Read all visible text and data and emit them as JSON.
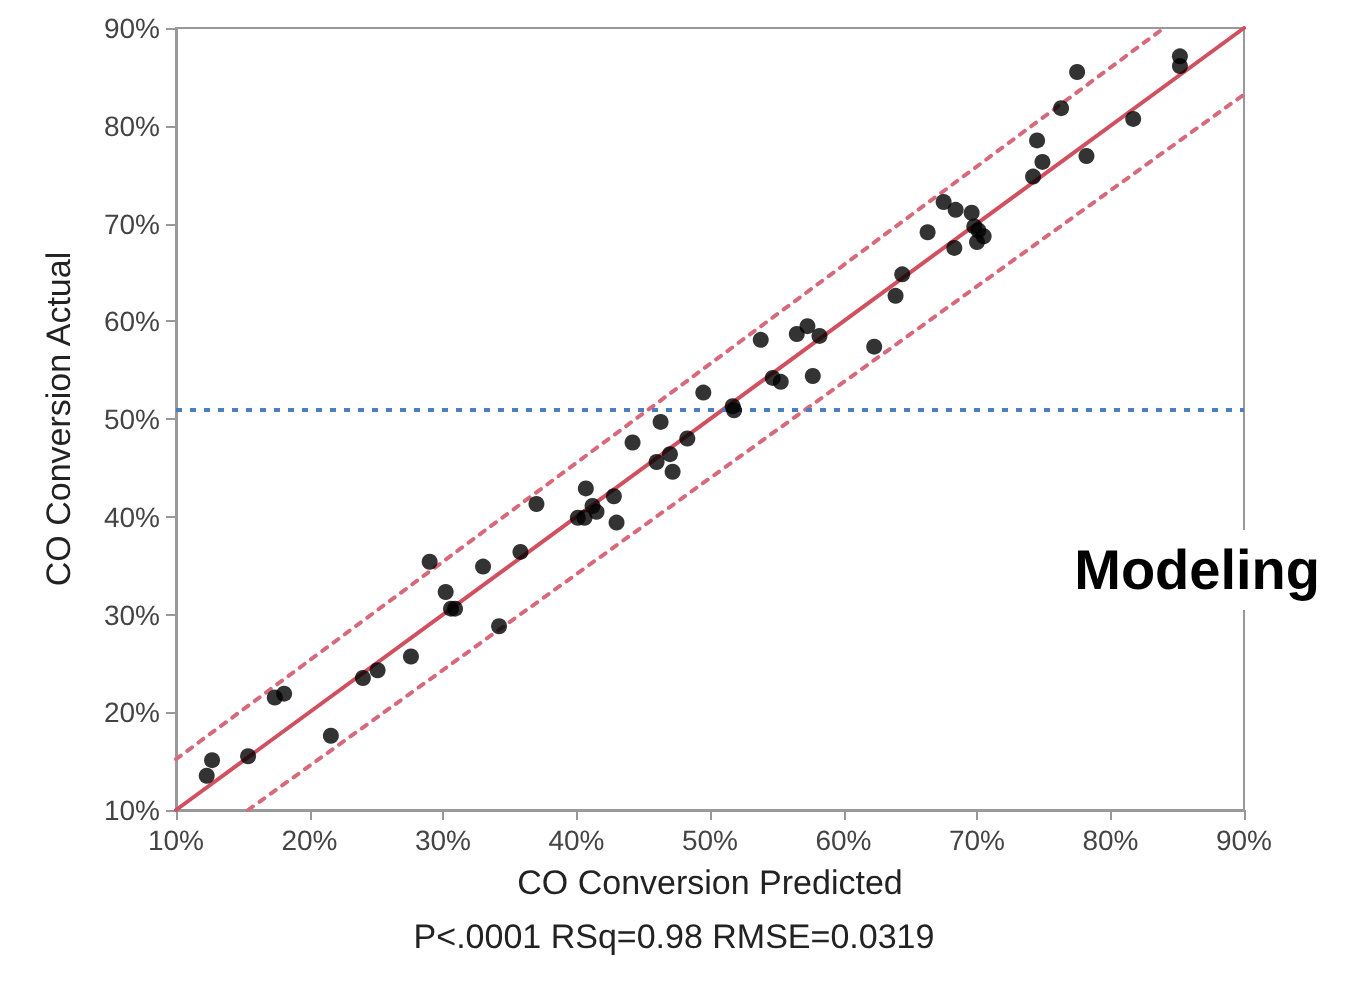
{
  "chart_data": {
    "type": "scatter",
    "xlabel": "CO Conversion Predicted",
    "ylabel": "CO Conversion Actual",
    "annotations": [
      "Modeling",
      "P<.0001 RSq=0.98 RMSE=0.0319"
    ],
    "xlim": [
      10,
      90
    ],
    "ylim": [
      10,
      90
    ],
    "xticks": [
      {
        "value": 10,
        "label": "10%"
      },
      {
        "value": 20,
        "label": "20%"
      },
      {
        "value": 30,
        "label": "30%"
      },
      {
        "value": 40,
        "label": "40%"
      },
      {
        "value": 50,
        "label": "50%"
      },
      {
        "value": 60,
        "label": "60%"
      },
      {
        "value": 70,
        "label": "70%"
      },
      {
        "value": 80,
        "label": "80%"
      },
      {
        "value": 90,
        "label": "90%"
      }
    ],
    "yticks": [
      {
        "value": 10,
        "label": "10%"
      },
      {
        "value": 20,
        "label": "20%"
      },
      {
        "value": 30,
        "label": "30%"
      },
      {
        "value": 40,
        "label": "40%"
      },
      {
        "value": 50,
        "label": "50%"
      },
      {
        "value": 60,
        "label": "60%"
      },
      {
        "value": 70,
        "label": "70%"
      },
      {
        "value": 80,
        "label": "80%"
      },
      {
        "value": 90,
        "label": "90%"
      }
    ],
    "grid": false,
    "ref_lines": [
      {
        "axis": "y",
        "value": 51,
        "color": "#4a7fc0",
        "line_style": "dotted"
      }
    ],
    "series": [
      {
        "color": "#000000",
        "marker": "circle",
        "x": [
          12.3,
          12.7,
          15.4,
          17.4,
          18.1,
          21.6,
          24.0,
          25.1,
          27.6,
          29.0,
          30.2,
          30.6,
          30.9,
          33.0,
          34.2,
          35.8,
          37.0,
          40.7,
          40.1,
          40.6,
          41.2,
          41.5,
          42.8,
          43.0,
          44.2,
          46.0,
          46.3,
          47.0,
          47.2,
          48.3,
          49.5,
          51.7,
          51.8,
          53.8,
          54.7,
          55.3,
          56.5,
          57.3,
          58.2,
          57.7,
          62.3,
          63.9,
          64.4,
          66.3,
          67.5,
          68.4,
          68.3,
          69.6,
          69.8,
          70.1,
          70.0,
          70.5,
          74.2,
          74.5,
          74.9,
          76.3,
          77.5,
          78.2,
          81.7,
          85.2,
          85.2
        ],
        "values": [
          13.5,
          15.1,
          15.5,
          21.5,
          21.9,
          17.6,
          23.5,
          24.3,
          25.7,
          35.4,
          32.3,
          30.6,
          30.6,
          34.9,
          28.8,
          36.4,
          41.3,
          42.9,
          39.9,
          39.9,
          41.1,
          40.5,
          42.1,
          39.4,
          47.6,
          45.6,
          49.7,
          46.4,
          44.6,
          48.0,
          52.7,
          51.3,
          50.9,
          58.1,
          54.2,
          53.8,
          58.7,
          59.5,
          58.5,
          54.4,
          57.4,
          62.6,
          64.8,
          69.1,
          72.2,
          71.4,
          67.5,
          71.1,
          69.7,
          69.3,
          68.1,
          68.7,
          74.8,
          78.5,
          76.3,
          81.8,
          85.5,
          76.9,
          80.7,
          87.1,
          86.1
        ]
      },
      {
        "type": "line",
        "color": "#d0505f",
        "line_style": "solid",
        "marker": "none",
        "x": [
          10,
          90
        ],
        "values": [
          10,
          90
        ]
      },
      {
        "type": "line",
        "color": "#d66a7a",
        "line_style": "dotted",
        "marker": "none",
        "x": [
          10,
          84
        ],
        "values": [
          15.2,
          90
        ]
      },
      {
        "type": "line",
        "color": "#d66a7a",
        "line_style": "dotted",
        "marker": "none",
        "x": [
          15.4,
          90
        ],
        "values": [
          10,
          83.2
        ]
      }
    ]
  }
}
